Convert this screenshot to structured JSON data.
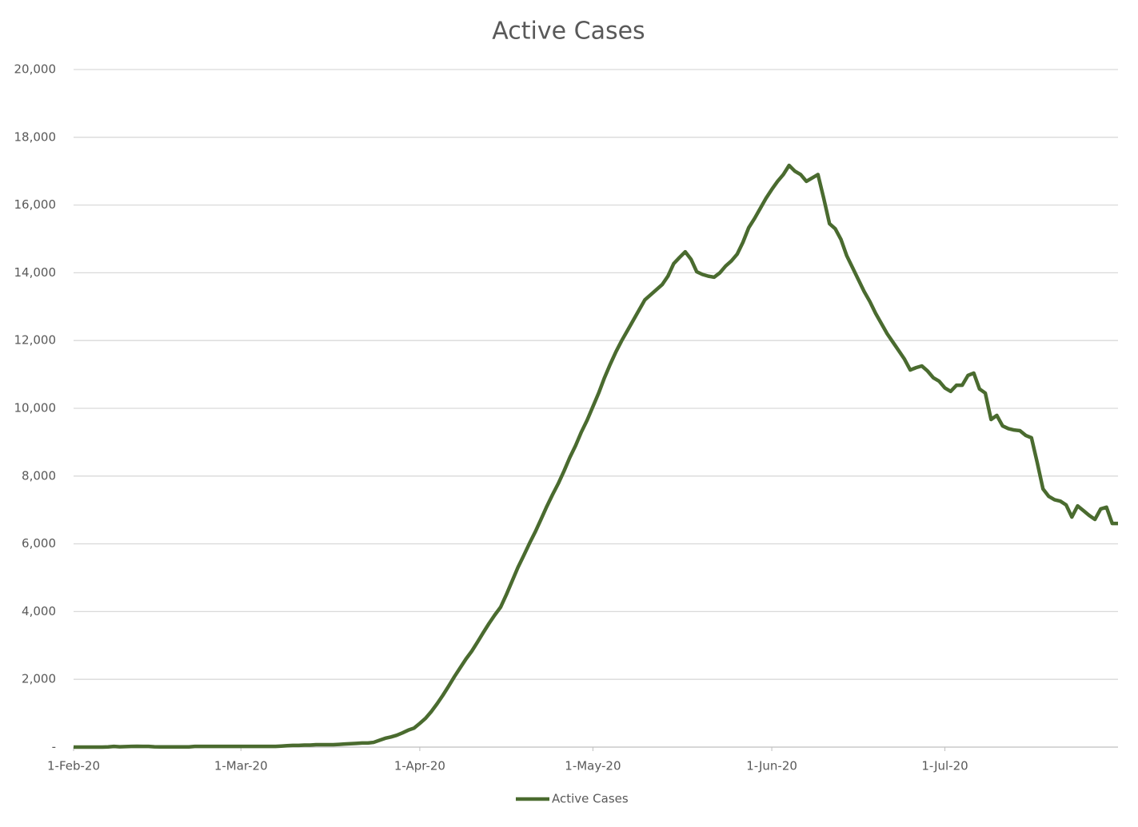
{
  "chart_data": {
    "type": "line",
    "title": "Active Cases",
    "x": [
      "2020-02-01",
      "2020-02-02",
      "2020-02-03",
      "2020-02-04",
      "2020-02-05",
      "2020-02-06",
      "2020-02-07",
      "2020-02-08",
      "2020-02-09",
      "2020-02-10",
      "2020-02-11",
      "2020-02-12",
      "2020-02-13",
      "2020-02-14",
      "2020-02-15",
      "2020-02-16",
      "2020-02-17",
      "2020-02-18",
      "2020-02-19",
      "2020-02-20",
      "2020-02-21",
      "2020-02-22",
      "2020-02-23",
      "2020-02-24",
      "2020-02-25",
      "2020-02-26",
      "2020-02-27",
      "2020-02-28",
      "2020-02-29",
      "2020-03-01",
      "2020-03-02",
      "2020-03-03",
      "2020-03-04",
      "2020-03-05",
      "2020-03-06",
      "2020-03-07",
      "2020-03-08",
      "2020-03-09",
      "2020-03-10",
      "2020-03-11",
      "2020-03-12",
      "2020-03-13",
      "2020-03-14",
      "2020-03-15",
      "2020-03-16",
      "2020-03-17",
      "2020-03-18",
      "2020-03-19",
      "2020-03-20",
      "2020-03-21",
      "2020-03-22",
      "2020-03-23",
      "2020-03-24",
      "2020-03-25",
      "2020-03-26",
      "2020-03-27",
      "2020-03-28",
      "2020-03-29",
      "2020-03-30",
      "2020-03-31",
      "2020-04-01",
      "2020-04-02",
      "2020-04-03",
      "2020-04-04",
      "2020-04-05",
      "2020-04-06",
      "2020-04-07",
      "2020-04-08",
      "2020-04-09",
      "2020-04-10",
      "2020-04-11",
      "2020-04-12",
      "2020-04-13",
      "2020-04-14",
      "2020-04-15",
      "2020-04-16",
      "2020-04-17",
      "2020-04-18",
      "2020-04-19",
      "2020-04-20",
      "2020-04-21",
      "2020-04-22",
      "2020-04-23",
      "2020-04-24",
      "2020-04-25",
      "2020-04-26",
      "2020-04-27",
      "2020-04-28",
      "2020-04-29",
      "2020-04-30",
      "2020-05-01",
      "2020-05-02",
      "2020-05-03",
      "2020-05-04",
      "2020-05-05",
      "2020-05-06",
      "2020-05-07",
      "2020-05-08",
      "2020-05-09",
      "2020-05-10",
      "2020-05-11",
      "2020-05-12",
      "2020-05-13",
      "2020-05-14",
      "2020-05-15",
      "2020-05-16",
      "2020-05-17",
      "2020-05-18",
      "2020-05-19",
      "2020-05-20",
      "2020-05-21",
      "2020-05-22",
      "2020-05-23",
      "2020-05-24",
      "2020-05-25",
      "2020-05-26",
      "2020-05-27",
      "2020-05-28",
      "2020-05-29",
      "2020-05-30",
      "2020-05-31",
      "2020-06-01",
      "2020-06-02",
      "2020-06-03",
      "2020-06-04",
      "2020-06-05",
      "2020-06-06",
      "2020-06-07",
      "2020-06-08",
      "2020-06-09",
      "2020-06-10",
      "2020-06-11",
      "2020-06-12",
      "2020-06-13",
      "2020-06-14",
      "2020-06-15",
      "2020-06-16",
      "2020-06-17",
      "2020-06-18",
      "2020-06-19",
      "2020-06-20",
      "2020-06-21",
      "2020-06-22",
      "2020-06-23",
      "2020-06-24",
      "2020-06-25",
      "2020-06-26",
      "2020-06-27",
      "2020-06-28",
      "2020-06-29",
      "2020-06-30",
      "2020-07-01",
      "2020-07-02",
      "2020-07-03",
      "2020-07-04",
      "2020-07-05",
      "2020-07-06",
      "2020-07-07",
      "2020-07-08",
      "2020-07-09",
      "2020-07-10",
      "2020-07-11",
      "2020-07-12",
      "2020-07-13",
      "2020-07-14",
      "2020-07-15",
      "2020-07-16",
      "2020-07-17",
      "2020-07-18",
      "2020-07-19",
      "2020-07-20",
      "2020-07-21",
      "2020-07-22",
      "2020-07-23",
      "2020-07-24",
      "2020-07-25",
      "2020-07-26",
      "2020-07-27",
      "2020-07-28",
      "2020-07-29",
      "2020-07-30",
      "2020-07-31"
    ],
    "series": [
      {
        "name": "Active Cases",
        "color": "#4a6b2f",
        "values": [
          0,
          0,
          0,
          0,
          0,
          0,
          5,
          20,
          10,
          15,
          20,
          25,
          20,
          20,
          10,
          5,
          5,
          5,
          5,
          5,
          5,
          20,
          20,
          20,
          20,
          20,
          20,
          20,
          20,
          20,
          20,
          20,
          20,
          20,
          20,
          20,
          30,
          40,
          50,
          50,
          60,
          60,
          70,
          70,
          70,
          70,
          80,
          90,
          100,
          110,
          120,
          120,
          140,
          200,
          260,
          300,
          350,
          420,
          500,
          560,
          700,
          850,
          1050,
          1280,
          1530,
          1800,
          2080,
          2340,
          2600,
          2830,
          3100,
          3380,
          3650,
          3900,
          4130,
          4500,
          4900,
          5300,
          5650,
          6010,
          6350,
          6720,
          7100,
          7450,
          7780,
          8150,
          8550,
          8900,
          9300,
          9650,
          10050,
          10450,
          10900,
          11300,
          11670,
          12000,
          12300,
          12600,
          12900,
          13200,
          13350,
          13500,
          13650,
          13900,
          14270,
          14450,
          14620,
          14400,
          14030,
          13950,
          13900,
          13870,
          14000,
          14200,
          14350,
          14550,
          14900,
          15330,
          15600,
          15900,
          16200,
          16460,
          16700,
          16900,
          17170,
          17000,
          16900,
          16700,
          16800,
          16900,
          16200,
          15450,
          15300,
          14980,
          14500,
          14150,
          13800,
          13450,
          13150,
          12800,
          12500,
          12200,
          11950,
          11700,
          11450,
          11130,
          11200,
          11250,
          11100,
          10900,
          10800,
          10600,
          10500,
          10680,
          10680,
          10970,
          11040,
          10570,
          10450,
          9670,
          9790,
          9480,
          9400,
          9360,
          9340,
          9200,
          9130,
          8400,
          7620,
          7400,
          7300,
          7260,
          7150,
          6790,
          7120,
          6980,
          6840,
          6720,
          7030,
          7080,
          6600,
          6600
        ]
      }
    ],
    "xlim": [
      "2020-02-01",
      "2020-07-31"
    ],
    "xticks": [
      {
        "value": "2020-02-01",
        "label": "1-Feb-20"
      },
      {
        "value": "2020-03-01",
        "label": "1-Mar-20"
      },
      {
        "value": "2020-04-01",
        "label": "1-Apr-20"
      },
      {
        "value": "2020-05-01",
        "label": "1-May-20"
      },
      {
        "value": "2020-06-01",
        "label": "1-Jun-20"
      },
      {
        "value": "2020-07-01",
        "label": "1-Jul-20"
      }
    ],
    "ylim": [
      0,
      20000
    ],
    "yticks": [
      {
        "value": 0,
        "label": "-"
      },
      {
        "value": 2000,
        "label": "2,000"
      },
      {
        "value": 4000,
        "label": "4,000"
      },
      {
        "value": 6000,
        "label": "6,000"
      },
      {
        "value": 8000,
        "label": "8,000"
      },
      {
        "value": 10000,
        "label": "10,000"
      },
      {
        "value": 12000,
        "label": "12,000"
      },
      {
        "value": 14000,
        "label": "14,000"
      },
      {
        "value": 16000,
        "label": "16,000"
      },
      {
        "value": 18000,
        "label": "18,000"
      },
      {
        "value": 20000,
        "label": "20,000"
      }
    ],
    "grid": true,
    "legend": "bottom"
  }
}
